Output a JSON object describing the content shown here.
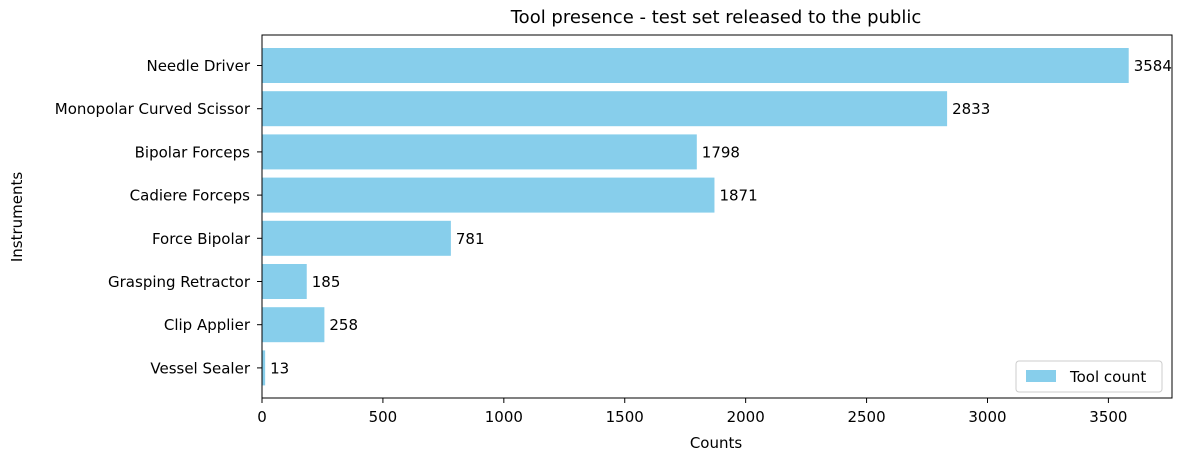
{
  "chart_data": {
    "type": "bar",
    "orientation": "horizontal",
    "title": "Tool presence - test set released to the public",
    "xlabel": "Counts",
    "ylabel": "Instruments",
    "categories": [
      "Needle Driver",
      "Monopolar Curved Scissor",
      "Bipolar Forceps",
      "Cadiere Forceps",
      "Force Bipolar",
      "Grasping Retractor",
      "Clip Applier",
      "Vessel Sealer"
    ],
    "series": [
      {
        "name": "Tool count",
        "values": [
          3584,
          2833,
          1798,
          1871,
          781,
          185,
          258,
          13
        ]
      }
    ],
    "xlim": [
      0,
      3763
    ],
    "xticks": [
      0,
      500,
      1000,
      1500,
      2000,
      2500,
      3000,
      3500
    ],
    "grid": false,
    "legend_position": "lower-right",
    "bar_color": "#87ceeb"
  }
}
